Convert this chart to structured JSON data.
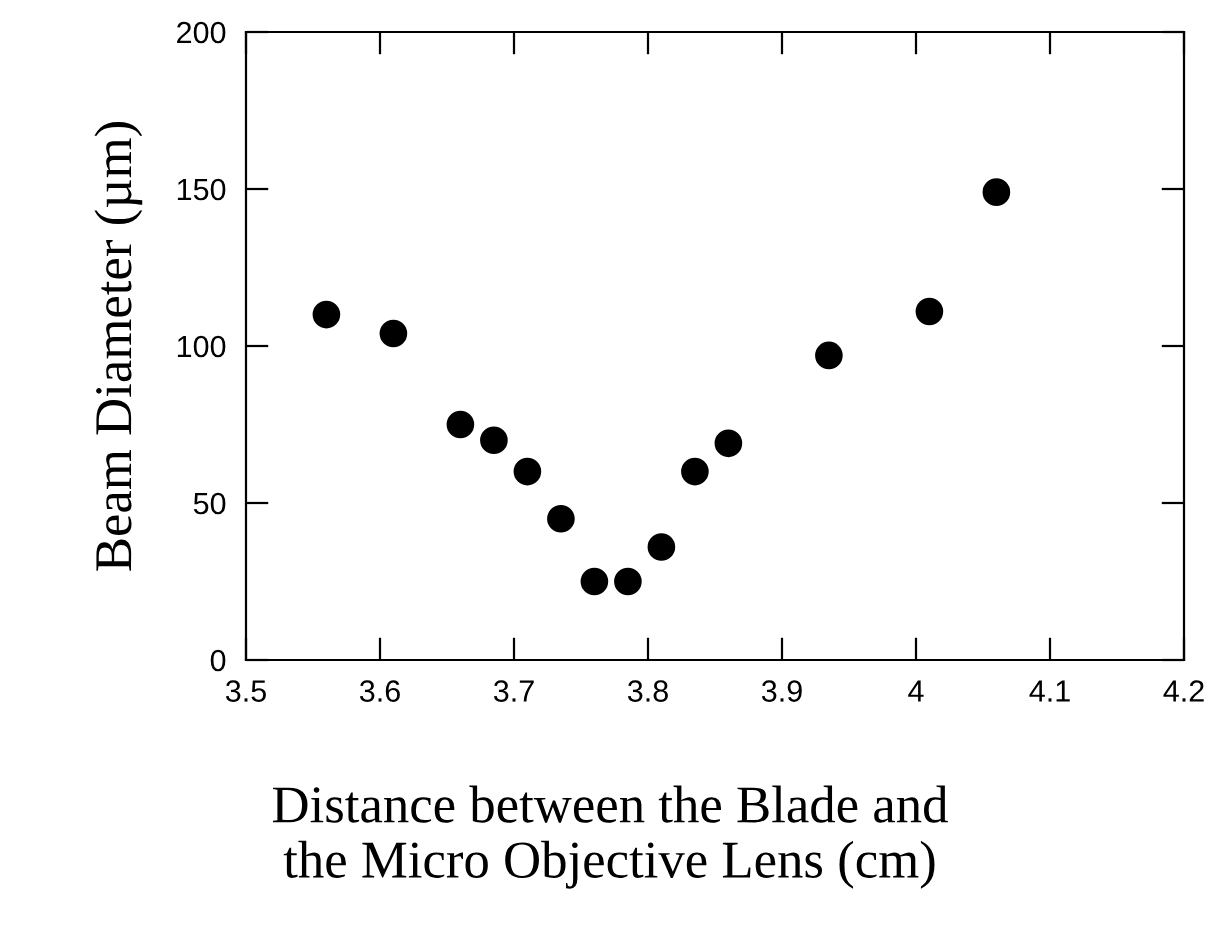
{
  "chart_data": {
    "type": "scatter",
    "xlabel": "Distance between the Blade and\nthe Micro Objective Lens (cm)",
    "ylabel": "Beam Diameter (µm)",
    "x": [
      3.56,
      3.61,
      3.66,
      3.685,
      3.71,
      3.735,
      3.76,
      3.785,
      3.81,
      3.835,
      3.86,
      3.935,
      4.01,
      4.06
    ],
    "values": [
      110,
      104,
      75,
      70,
      60,
      45,
      25,
      25,
      36,
      60,
      69,
      97,
      111,
      149
    ],
    "color": "#000000",
    "marker": "circle",
    "xlim": [
      3.5,
      4.2
    ],
    "xticks": [
      3.5,
      3.6,
      3.7,
      3.8,
      3.9,
      4,
      4.1,
      4.2
    ],
    "ylim": [
      0,
      200
    ],
    "yticks": [
      0,
      50,
      100,
      150,
      200
    ],
    "grid": false
  }
}
